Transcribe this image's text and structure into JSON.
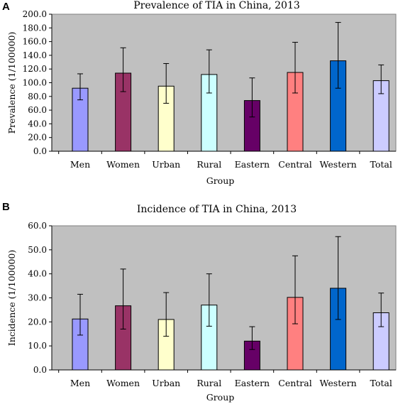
{
  "chart_data": [
    {
      "panel": "A",
      "type": "bar",
      "title": "Prevalence of TIA in China, 2013",
      "xlabel": "Group",
      "ylabel": "Prevalence (1/100000)",
      "ylim": [
        0,
        200
      ],
      "yticks": [
        "0.0",
        "20.0",
        "40.0",
        "60.0",
        "80.0",
        "100.0",
        "120.0",
        "140.0",
        "160.0",
        "180.0",
        "200.0"
      ],
      "categories": [
        "Men",
        "Women",
        "Urban",
        "Rural",
        "Eastern",
        "Central",
        "Western",
        "Total"
      ],
      "values": [
        92,
        114,
        95,
        112,
        74,
        115,
        132,
        103
      ],
      "error_low": [
        75,
        87,
        70,
        85,
        50,
        85,
        92,
        84
      ],
      "error_high": [
        113,
        151,
        128,
        148,
        107,
        159,
        188,
        126
      ],
      "colors": [
        "#9999ff",
        "#993366",
        "#ffffcc",
        "#ccffff",
        "#660066",
        "#ff8080",
        "#0066cc",
        "#ccccff"
      ],
      "plot_background": "#c0c0c0",
      "grid": false
    },
    {
      "panel": "B",
      "type": "bar",
      "title": "Incidence of TIA in China, 2013",
      "xlabel": "Group",
      "ylabel": "Incidence (1/100000)",
      "ylim": [
        0,
        60
      ],
      "yticks": [
        "0.0",
        "10.0",
        "20.0",
        "30.0",
        "40.0",
        "50.0",
        "60.0"
      ],
      "categories": [
        "Men",
        "Women",
        "Urban",
        "Rural",
        "Eastern",
        "Central",
        "Western",
        "Total"
      ],
      "values": [
        21.2,
        26.7,
        21.0,
        27.0,
        12.0,
        30.2,
        34.0,
        23.8
      ],
      "error_low": [
        14.5,
        17.0,
        14.0,
        18.2,
        8.5,
        19.2,
        21.0,
        18.0
      ],
      "error_high": [
        31.5,
        42.0,
        32.2,
        40.0,
        18.0,
        47.5,
        55.5,
        32.0
      ],
      "colors": [
        "#9999ff",
        "#993366",
        "#ffffcc",
        "#ccffff",
        "#660066",
        "#ff8080",
        "#0066cc",
        "#ccccff"
      ],
      "plot_background": "#c0c0c0",
      "grid": false
    }
  ]
}
